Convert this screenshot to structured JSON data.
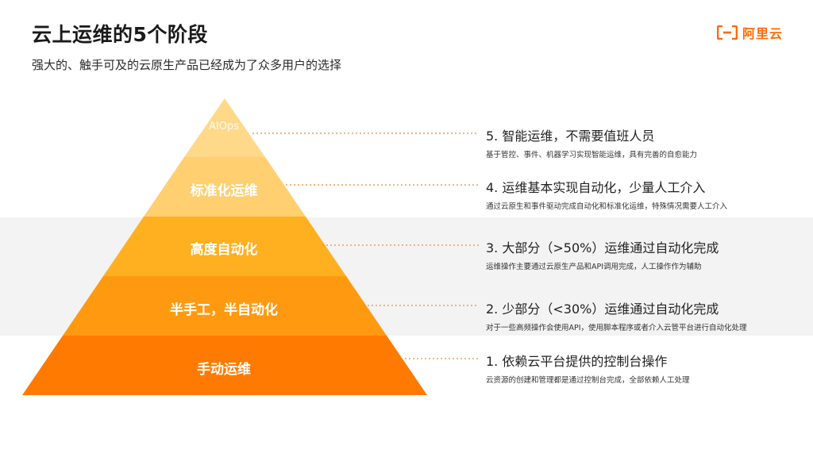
{
  "header": {
    "title": "云上运维的5个阶段",
    "subtitle": "强大的、触手可及的云原生产品已经成为了众多用户的选择"
  },
  "logo": {
    "text": "阿里云",
    "brand_color": "#ff6a00"
  },
  "pyramid": {
    "layers": [
      {
        "label": "AIOps",
        "color": "#ffd98a"
      },
      {
        "label": "标准化运维",
        "color": "#ffcf70"
      },
      {
        "label": "高度自动化",
        "color": "#ffb020"
      },
      {
        "label": "半手工，半自动化",
        "color": "#ff9a10"
      },
      {
        "label": "手动运维",
        "color": "#ff7a00"
      }
    ]
  },
  "stages": [
    {
      "title": "5. 智能运维，不需要值班人员",
      "desc": "基于管控、事件、机器学习实现智能运维，具有完善的自愈能力"
    },
    {
      "title": "4. 运维基本实现自动化，少量人工介入",
      "desc": "通过云原生和事件驱动完成自动化和标准化运维，特殊情况需要人工介入"
    },
    {
      "title": "3. 大部分（>50%）运维通过自动化完成",
      "desc": "运维操作主要通过云原生产品和API调用完成，人工操作作为辅助"
    },
    {
      "title": "2. 少部分（<30%）运维通过自动化完成",
      "desc": "对于一些高频操作会使用API，使用脚本程序或者介入云管平台进行自动化处理"
    },
    {
      "title": "1. 依赖云平台提供的控制台操作",
      "desc": "云资源的创建和管理都是通过控制台完成，全部依赖人工处理"
    }
  ]
}
